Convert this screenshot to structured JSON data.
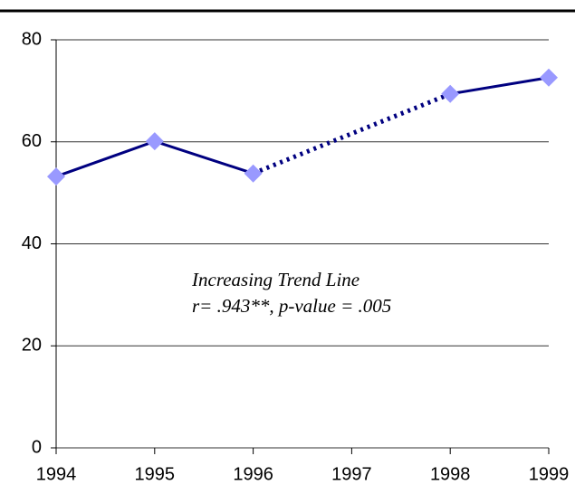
{
  "chart_data": {
    "type": "line",
    "x": [
      1994,
      1995,
      1996,
      1997,
      1998,
      1999
    ],
    "values": [
      53.2,
      60.1,
      53.8,
      null,
      69.4,
      72.6
    ],
    "color": "#000080",
    "marker_color": "#9999ff",
    "gap_style": "dotted",
    "xlim": [
      1994,
      1999
    ],
    "xticks": [
      1994,
      1995,
      1996,
      1997,
      1998,
      1999
    ],
    "ylim": [
      0,
      80
    ],
    "yticks": [
      0,
      20,
      40,
      60,
      80
    ],
    "grid": true,
    "annotations": [
      "Increasing Trend Line",
      "r= .943**, p-value = .005"
    ]
  }
}
